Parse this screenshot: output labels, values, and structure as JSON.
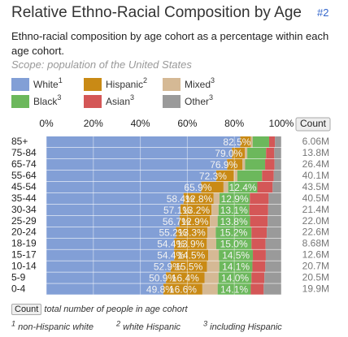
{
  "header": {
    "title": "Relative Ethno-Racial Composition by Age",
    "link": "#2",
    "subtitle": "Ethno-racial composition by age cohort as a percentage within each age cohort.",
    "scope": "Scope: population of the United States"
  },
  "chart_data": {
    "type": "stacked-bar-horizontal",
    "categories": [
      "85+",
      "75-84",
      "65-74",
      "55-64",
      "45-54",
      "35-44",
      "30-34",
      "25-29",
      "20-24",
      "18-19",
      "15-17",
      "10-14",
      "5-9",
      "0-4"
    ],
    "xlim": [
      0,
      100
    ],
    "xticks": [
      {
        "value": 0,
        "label": "0%"
      },
      {
        "value": 20,
        "label": "20%"
      },
      {
        "value": 40,
        "label": "40%"
      },
      {
        "value": 60,
        "label": "60%"
      },
      {
        "value": 80,
        "label": "80%"
      },
      {
        "value": 100,
        "label": "100%"
      }
    ],
    "grid": true,
    "series": [
      {
        "name": "White",
        "note": "1",
        "color": "#829fd6",
        "values": [
          82.5,
          79.0,
          76.9,
          72.3,
          65.9,
          58.4,
          57.1,
          56.7,
          55.2,
          54.4,
          54.4,
          52.9,
          50.9,
          49.8
        ],
        "value_labels": [
          "82.5%",
          "79.0%",
          "76.9%",
          "72.3%",
          "65.9%",
          "58.4%",
          "57.1%",
          "56.7%",
          "55.2%",
          "54.4%",
          "54.4%",
          "52.9%",
          "50.9%",
          "49.8%"
        ]
      },
      {
        "name": "Hispanic",
        "note": "2",
        "color": "#c98a15",
        "values": [
          4.5,
          5.5,
          6.5,
          7.5,
          9.5,
          12.8,
          13.2,
          12.9,
          13.3,
          13.9,
          14.5,
          15.5,
          16.4,
          16.6
        ],
        "value_labels": [
          null,
          null,
          null,
          null,
          null,
          "12.8%",
          "13.2%",
          "12.9%",
          "13.3%",
          "13.9%",
          "14.5%",
          "15.5%",
          "16.4%",
          "16.6%"
        ]
      },
      {
        "name": "Mixed",
        "note": "3",
        "color": "#d5b995",
        "values": [
          0.8,
          1.0,
          1.2,
          1.5,
          2.0,
          2.5,
          3.0,
          3.3,
          3.6,
          4.0,
          4.5,
          5.2,
          6.0,
          6.5
        ]
      },
      {
        "name": "Black",
        "note": "3",
        "color": "#6cb85c",
        "values": [
          7.0,
          8.0,
          8.5,
          10.5,
          12.4,
          12.9,
          13.1,
          13.8,
          15.2,
          15.0,
          14.5,
          14.1,
          14.0,
          14.1
        ],
        "value_labels": [
          null,
          null,
          null,
          null,
          "12.4%",
          "12.9%",
          "13.1%",
          "13.8%",
          "15.2%",
          "15.0%",
          "14.5%",
          "14.1%",
          "14.0%",
          "14.1%"
        ]
      },
      {
        "name": "Asian",
        "note": "3",
        "color": "#d45757",
        "values": [
          2.5,
          3.5,
          4.0,
          5.0,
          6.5,
          8.0,
          8.0,
          7.5,
          6.5,
          6.0,
          5.5,
          5.5,
          5.5,
          5.5
        ]
      },
      {
        "name": "Other",
        "note": "3",
        "color": "#9a9a9a",
        "values": [
          2.7,
          3.0,
          2.9,
          3.2,
          3.7,
          5.4,
          5.6,
          5.8,
          6.2,
          6.7,
          6.6,
          6.8,
          7.2,
          7.5
        ]
      }
    ],
    "count_button": "Count",
    "counts": [
      6060000,
      13800000,
      26400000,
      40100000,
      43500000,
      40500000,
      21400000,
      22000000,
      22600000,
      8680000,
      12600000,
      20700000,
      20500000,
      19900000
    ],
    "count_labels": [
      "6.06M",
      "13.8M",
      "26.4M",
      "40.1M",
      "43.5M",
      "40.5M",
      "21.4M",
      "22.0M",
      "22.6M",
      "8.68M",
      "12.6M",
      "20.7M",
      "20.5M",
      "19.9M"
    ]
  },
  "footer": {
    "count_button": "Count",
    "count_note": "total number of people in age cohort",
    "notes": [
      {
        "mark": "1",
        "text": "non-Hispanic white"
      },
      {
        "mark": "2",
        "text": "white Hispanic"
      },
      {
        "mark": "3",
        "text": "including Hispanic"
      }
    ]
  }
}
